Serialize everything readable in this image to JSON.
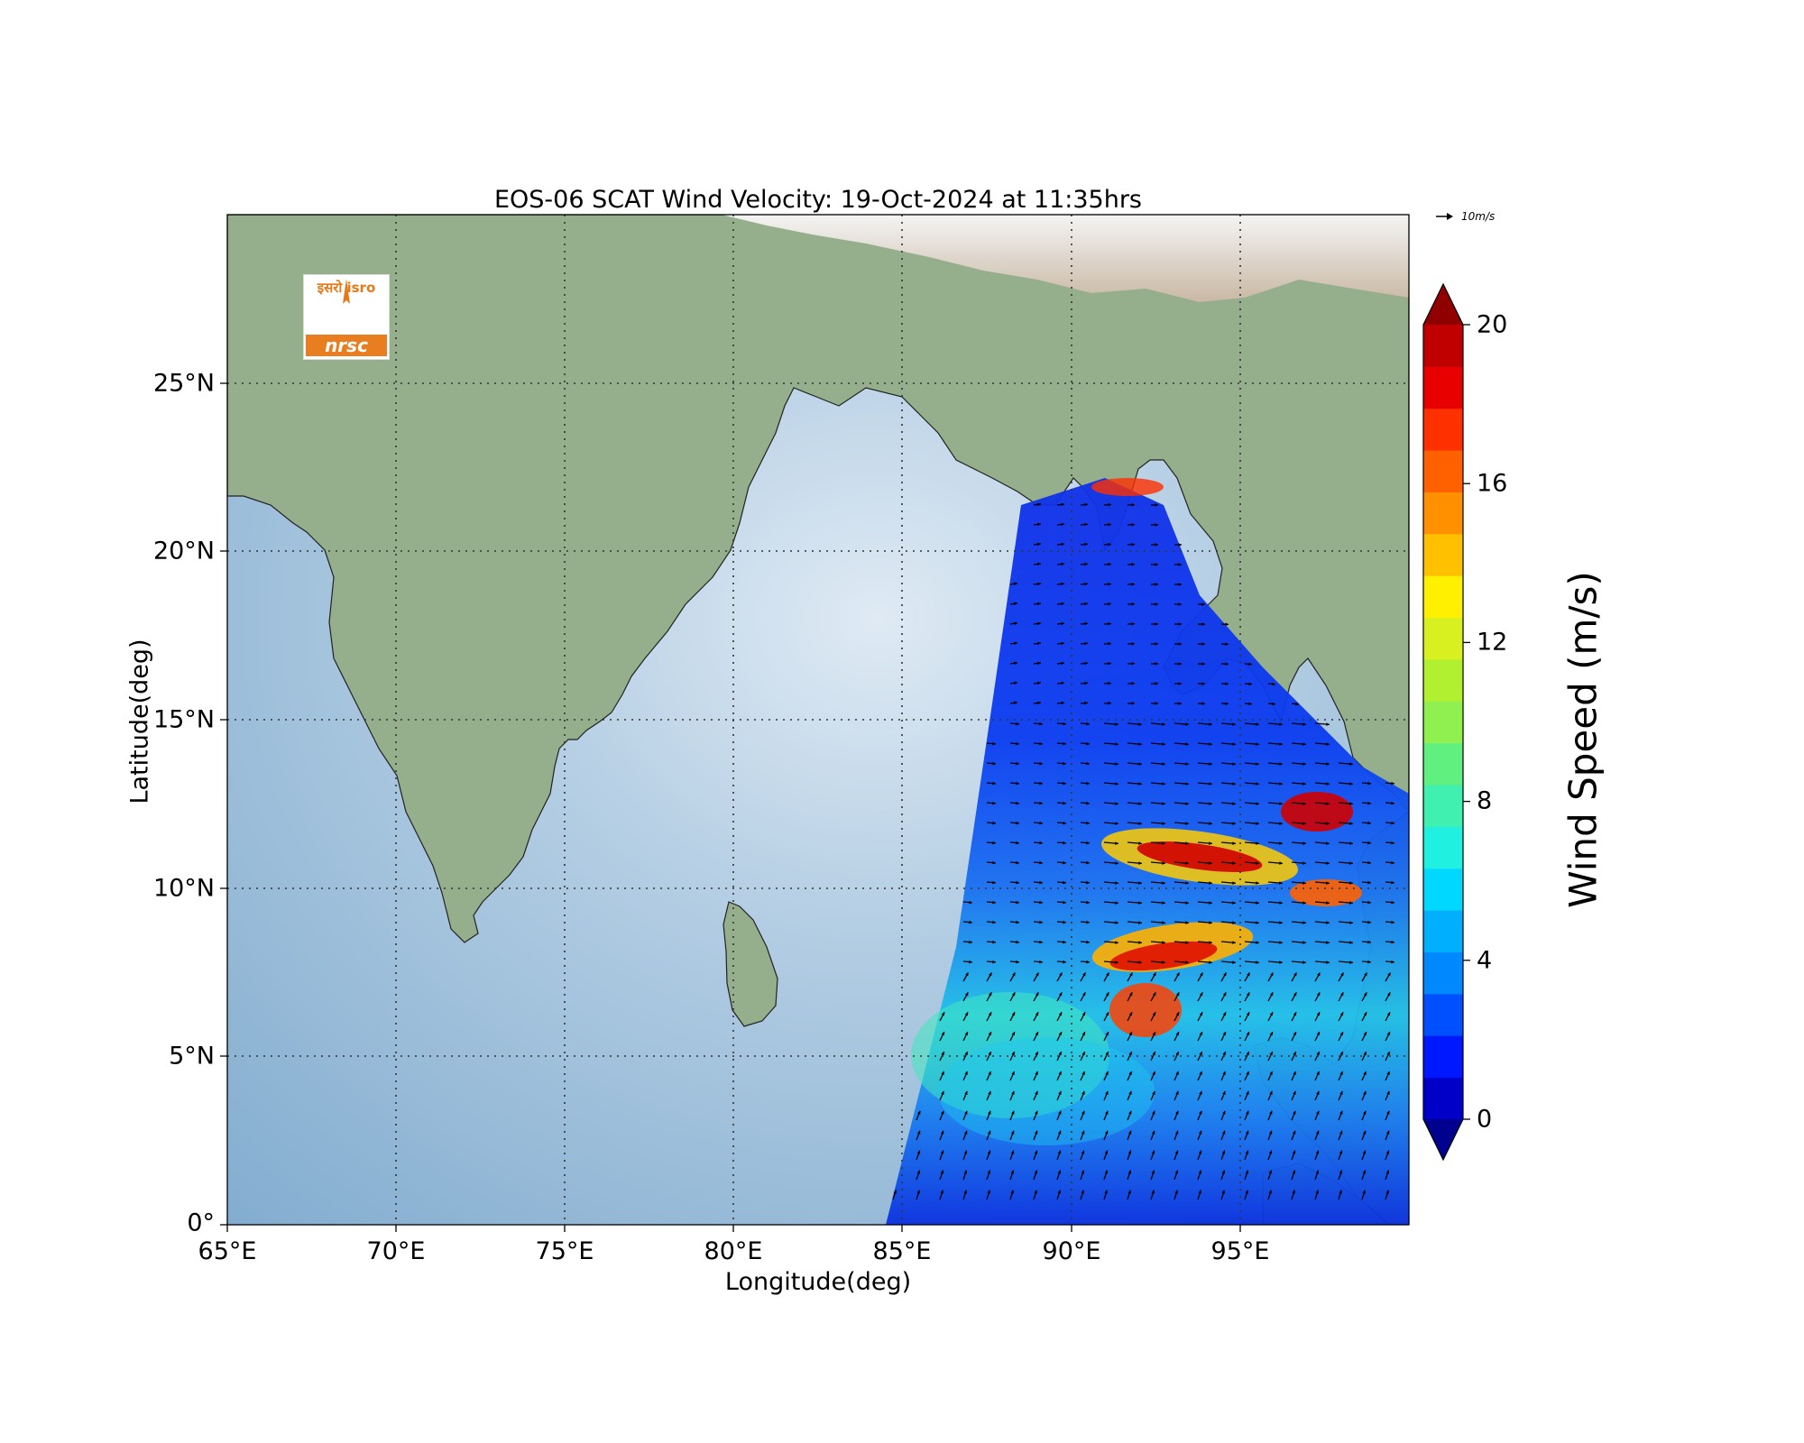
{
  "title": "EOS-06 SCAT Wind Velocity: 19-Oct-2024 at 11:35hrs",
  "axes": {
    "xlabel": "Longitude(deg)",
    "ylabel": "Latitude(deg)",
    "xticks": [
      "65°E",
      "70°E",
      "75°E",
      "80°E",
      "85°E",
      "90°E",
      "95°E"
    ],
    "xtick_values": [
      65,
      70,
      75,
      80,
      85,
      90,
      95
    ],
    "yticks": [
      "0°",
      "5°N",
      "10°N",
      "15°N",
      "20°N",
      "25°N"
    ],
    "ytick_values": [
      0,
      5,
      10,
      15,
      20,
      25
    ],
    "xlim": [
      65,
      100
    ],
    "ylim": [
      0,
      30
    ],
    "grid": "dotted"
  },
  "colorbar": {
    "label": "Wind Speed (m/s)",
    "ticks": [
      "0",
      "4",
      "8",
      "12",
      "16",
      "20"
    ],
    "tick_values": [
      0,
      4,
      8,
      12,
      16,
      20
    ],
    "range": [
      0,
      20
    ],
    "extend": "both",
    "colors": [
      "#00008f",
      "#0000c8",
      "#0018ff",
      "#0050ff",
      "#0088ff",
      "#00b0ff",
      "#00d8ff",
      "#20f0e0",
      "#40f0b0",
      "#60f080",
      "#90f050",
      "#b0f030",
      "#d8f020",
      "#fff000",
      "#ffc000",
      "#ff9000",
      "#ff6000",
      "#ff3000",
      "#e80000",
      "#c00000",
      "#900000"
    ]
  },
  "vector_reference": {
    "label": "10m/s"
  },
  "logo": {
    "top_text": "इसरो isro",
    "bottom_text": "nrsc"
  }
}
